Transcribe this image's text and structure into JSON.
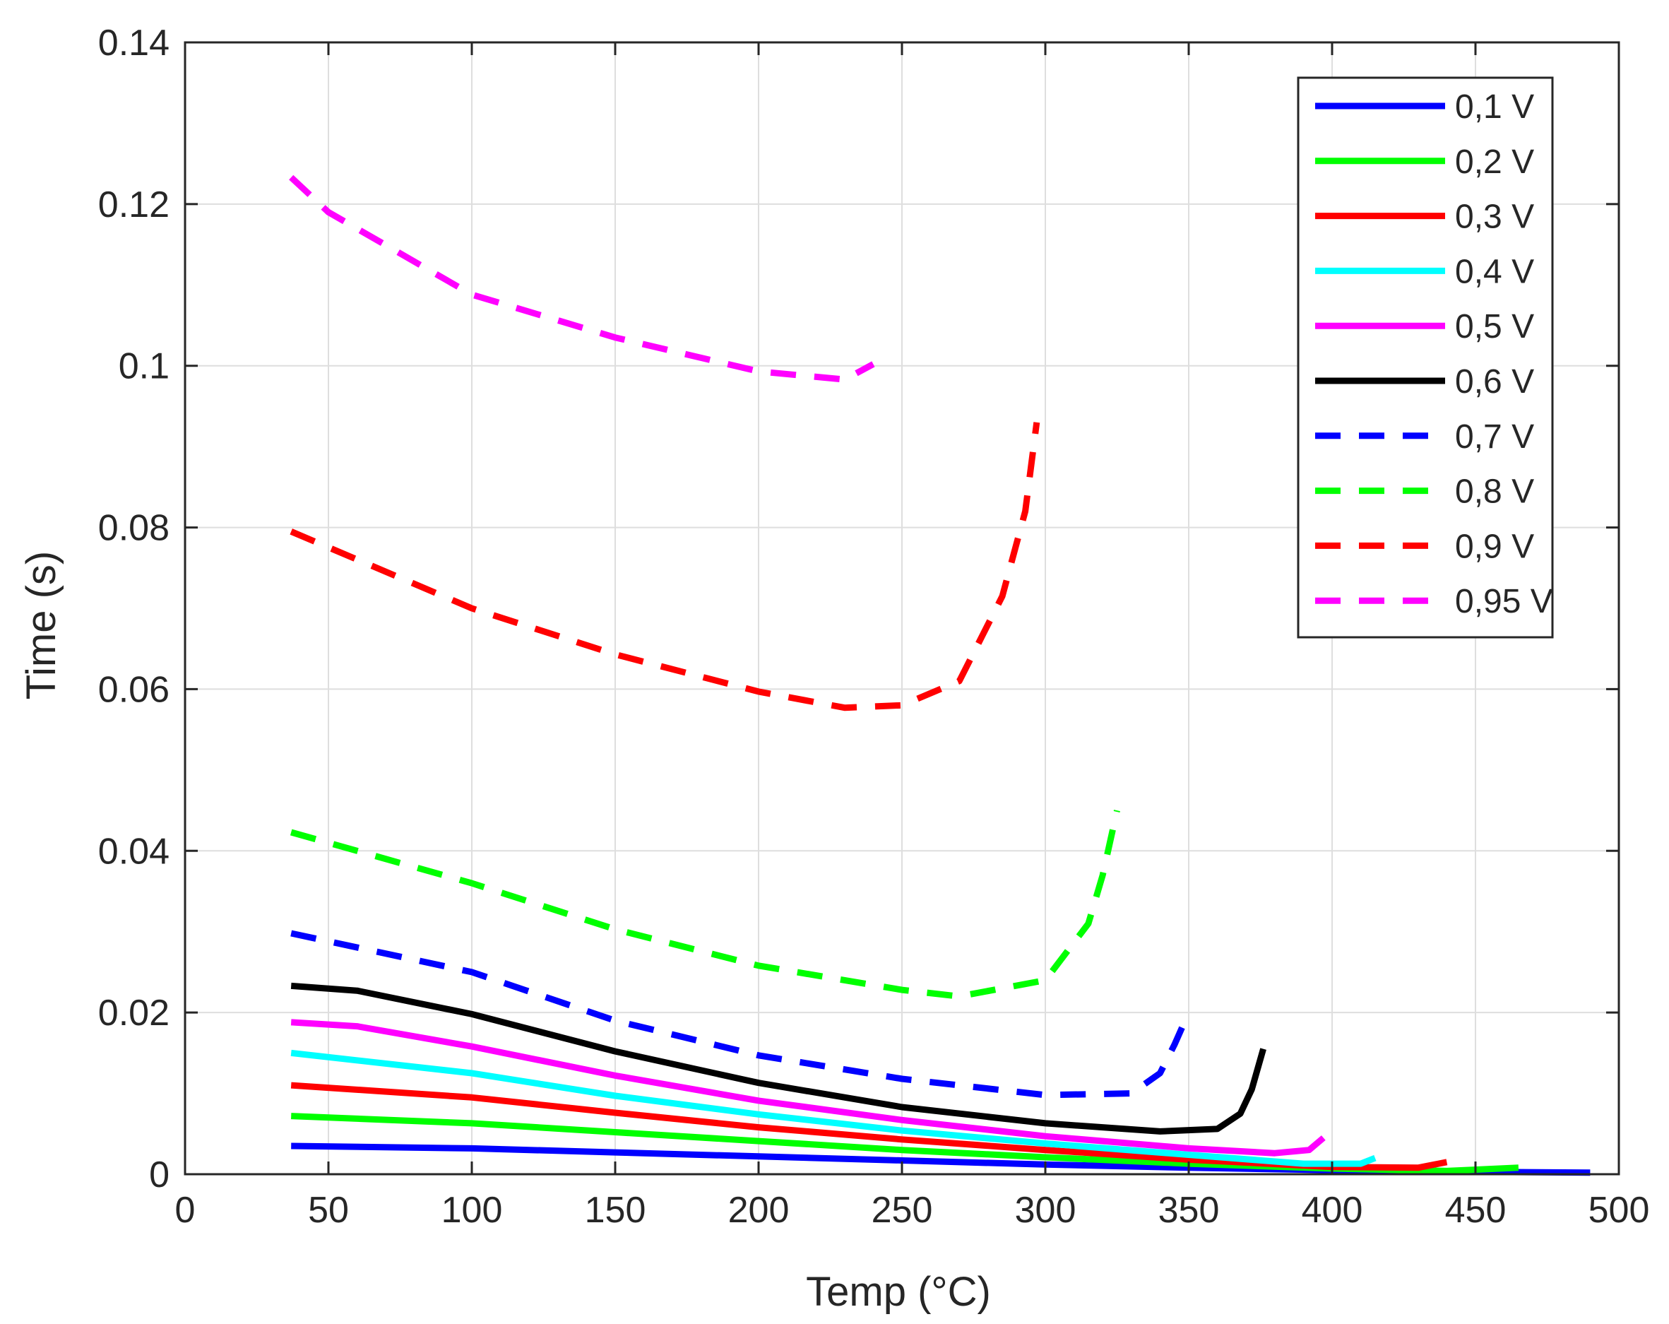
{
  "chart_data": {
    "type": "line",
    "title": "",
    "xlabel": "Temp (°C)",
    "ylabel": "Time (s)",
    "xlim": [
      0,
      500
    ],
    "ylim": [
      0,
      0.14
    ],
    "xticks": [
      0,
      50,
      100,
      150,
      200,
      250,
      300,
      350,
      400,
      450,
      500
    ],
    "yticks": [
      0,
      0.02,
      0.04,
      0.06,
      0.08,
      0.1,
      0.12,
      0.14
    ],
    "xtick_labels": [
      "0",
      "50",
      "100",
      "150",
      "200",
      "250",
      "300",
      "350",
      "400",
      "450",
      "500"
    ],
    "ytick_labels": [
      "0",
      "0.02",
      "0.04",
      "0.06",
      "0.08",
      "0.1",
      "0.12",
      "0.14"
    ],
    "grid": true,
    "legend_position": "top-right",
    "series": [
      {
        "name": "0,1 V",
        "color": "#0000ff",
        "dashed": false,
        "x": [
          37,
          100,
          150,
          200,
          250,
          300,
          350,
          400,
          450,
          490
        ],
        "y": [
          0.0035,
          0.0032,
          0.0027,
          0.0022,
          0.0017,
          0.0012,
          0.0008,
          0.0005,
          0.0003,
          0.0002
        ]
      },
      {
        "name": "0,2 V",
        "color": "#00ff00",
        "dashed": false,
        "x": [
          37,
          100,
          150,
          200,
          250,
          300,
          350,
          400,
          440,
          465
        ],
        "y": [
          0.0072,
          0.0063,
          0.0052,
          0.0041,
          0.003,
          0.0021,
          0.0013,
          0.0007,
          0.0004,
          0.0008
        ]
      },
      {
        "name": "0,3 V",
        "color": "#ff0000",
        "dashed": false,
        "x": [
          37,
          100,
          150,
          200,
          250,
          300,
          350,
          400,
          430,
          440
        ],
        "y": [
          0.011,
          0.0095,
          0.0076,
          0.0058,
          0.0043,
          0.003,
          0.0018,
          0.0009,
          0.0008,
          0.0015
        ]
      },
      {
        "name": "0,4 V",
        "color": "#00ffff",
        "dashed": false,
        "x": [
          37,
          100,
          150,
          200,
          250,
          300,
          350,
          390,
          410,
          415
        ],
        "y": [
          0.015,
          0.0125,
          0.0097,
          0.0074,
          0.0054,
          0.0038,
          0.0024,
          0.0013,
          0.0013,
          0.002
        ]
      },
      {
        "name": "0,5 V",
        "color": "#ff00ff",
        "dashed": false,
        "x": [
          37,
          60,
          100,
          150,
          200,
          250,
          300,
          350,
          380,
          392,
          397
        ],
        "y": [
          0.0188,
          0.0183,
          0.0158,
          0.0122,
          0.0091,
          0.0067,
          0.0047,
          0.0032,
          0.0026,
          0.003,
          0.0045
        ]
      },
      {
        "name": "0,6 V",
        "color": "#000000",
        "dashed": false,
        "x": [
          37,
          60,
          100,
          150,
          200,
          250,
          300,
          340,
          360,
          368,
          372,
          376
        ],
        "y": [
          0.0233,
          0.0227,
          0.0198,
          0.0152,
          0.0113,
          0.0083,
          0.0063,
          0.0053,
          0.0056,
          0.0075,
          0.0105,
          0.0155
        ]
      },
      {
        "name": "0,7 V",
        "color": "#0000ff",
        "dashed": true,
        "x": [
          37,
          100,
          150,
          200,
          250,
          300,
          330,
          340,
          345,
          350
        ],
        "y": [
          0.0298,
          0.025,
          0.019,
          0.0147,
          0.0118,
          0.0098,
          0.01,
          0.0125,
          0.016,
          0.02
        ]
      },
      {
        "name": "0,8 V",
        "color": "#00ff00",
        "dashed": true,
        "x": [
          37,
          100,
          150,
          200,
          250,
          270,
          300,
          315,
          320,
          325
        ],
        "y": [
          0.0423,
          0.036,
          0.0303,
          0.0258,
          0.0228,
          0.022,
          0.024,
          0.031,
          0.037,
          0.045
        ]
      },
      {
        "name": "0,9 V",
        "color": "#ff0000",
        "dashed": true,
        "x": [
          37,
          100,
          150,
          200,
          230,
          250,
          270,
          285,
          293,
          297
        ],
        "y": [
          0.0795,
          0.07,
          0.0643,
          0.0597,
          0.0577,
          0.058,
          0.061,
          0.0715,
          0.082,
          0.093
        ]
      },
      {
        "name": "0,95 V",
        "color": "#ff00ff",
        "dashed": true,
        "x": [
          37,
          50,
          100,
          150,
          200,
          230,
          240
        ],
        "y": [
          0.1233,
          0.119,
          0.1088,
          0.1035,
          0.0993,
          0.0983,
          0.1002
        ]
      }
    ]
  }
}
